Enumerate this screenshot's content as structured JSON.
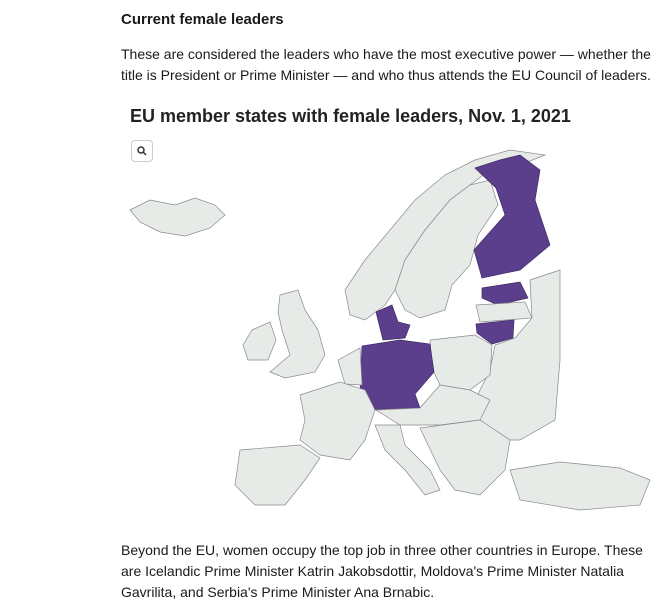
{
  "heading": "Current female leaders",
  "intro": "These are considered the leaders who have the most executive power — whether the title is President or Prime Minister — and who thus attends the EU Council of leaders.",
  "map": {
    "title": "EU member states with female leaders, Nov. 1, 2021"
  },
  "outro": "Beyond the EU, women occupy the top job in three other countries in Europe. These are Icelandic Prime Minister Katrin Jakobsdottir, Moldova's Prime Minister Natalia Gavrilita, and Serbia's Prime Minister Ana Brnabic."
}
